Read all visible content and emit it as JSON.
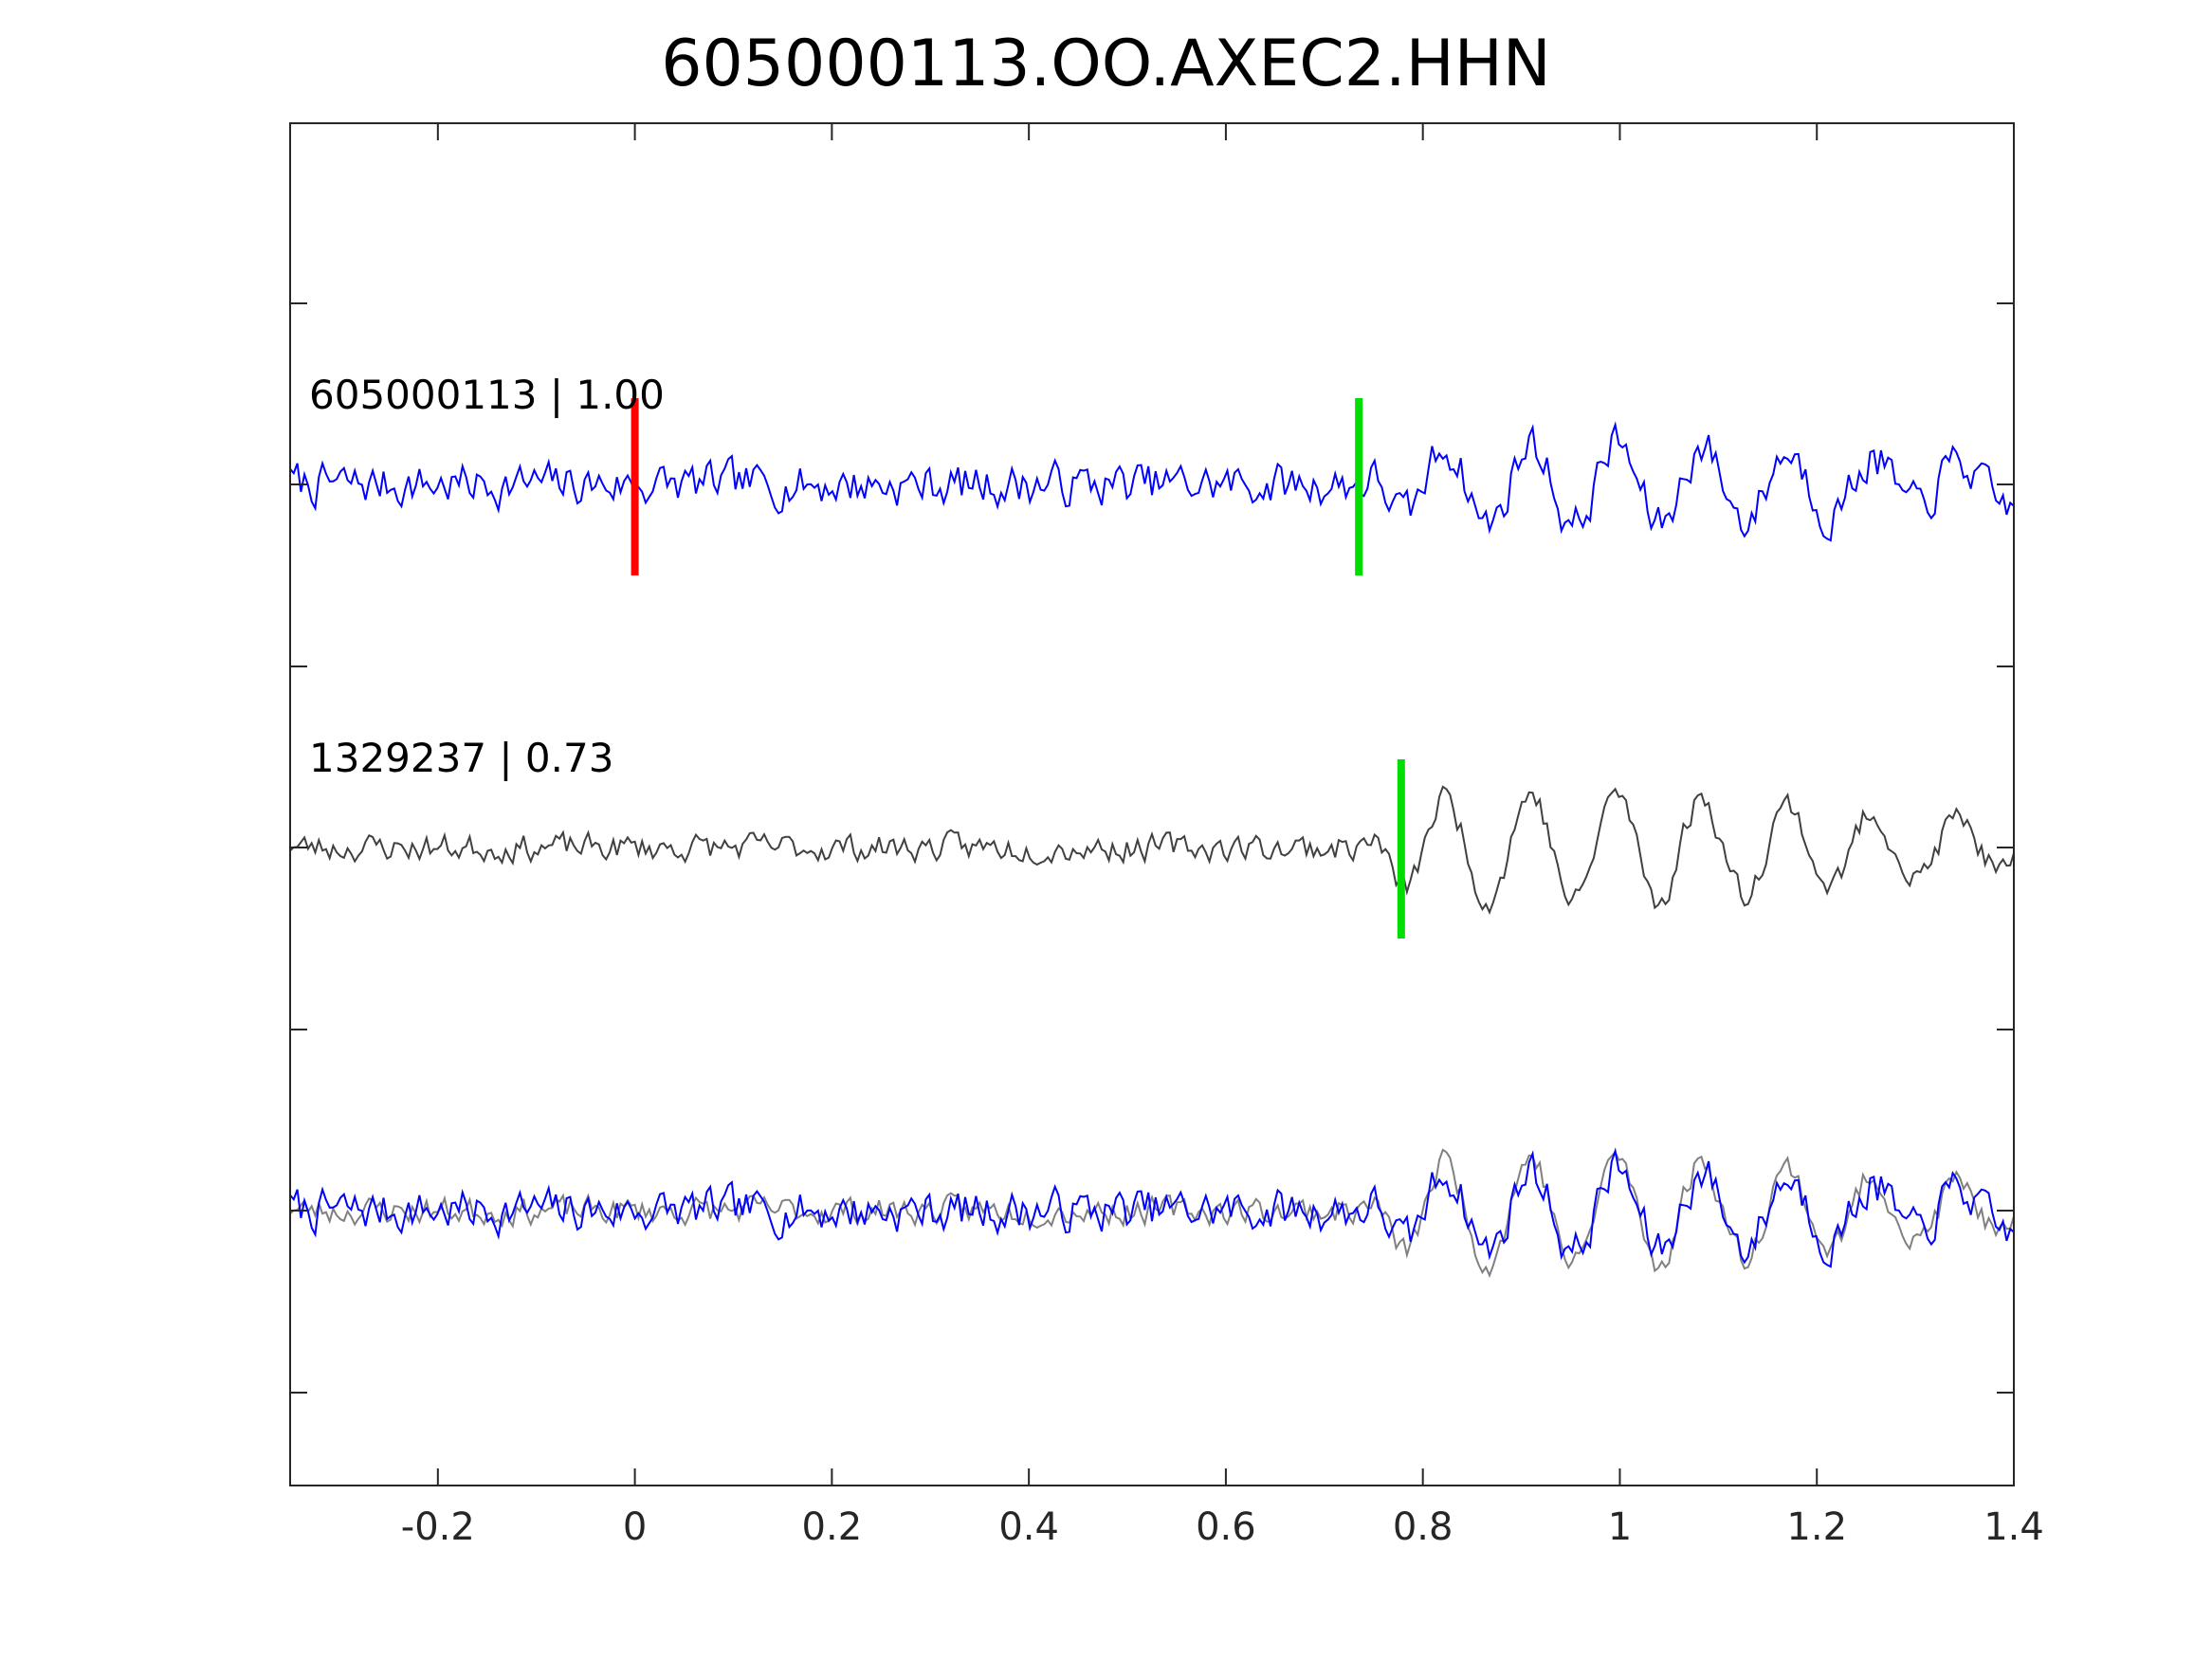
{
  "chart_data": {
    "type": "line",
    "title": "605000113.OO.AXEC2.HHN",
    "xlabel": "",
    "ylabel": "",
    "xlim": [
      -0.35,
      1.4
    ],
    "x_ticks": [
      -0.2,
      0,
      0.2,
      0.4,
      0.6,
      0.8,
      1,
      1.2,
      1.4
    ],
    "x_tick_labels": [
      "-0.2",
      "0",
      "0.2",
      "0.4",
      "0.6",
      "0.8",
      "1",
      "1.2",
      "1.4"
    ],
    "grid": false,
    "traces": [
      {
        "name": "605000113 | 1.00",
        "color": "#0000ff",
        "panel": "top"
      },
      {
        "name": "1329237 | 0.73",
        "color": "#404040",
        "panel": "middle"
      }
    ],
    "overlay_colors": {
      "master": "#0000ff",
      "template": "#808080"
    },
    "markers": [
      {
        "trace": "605000113",
        "x": 0.0,
        "color": "#ff0000"
      },
      {
        "trace": "605000113",
        "x": 0.735,
        "color": "#00dd00"
      },
      {
        "trace": "1329237",
        "x": 0.778,
        "color": "#00dd00"
      }
    ]
  }
}
